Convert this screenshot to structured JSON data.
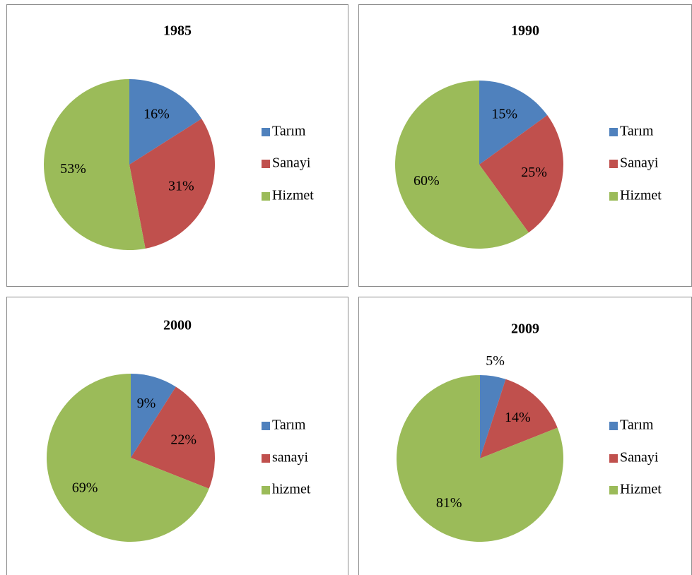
{
  "chart_data": [
    {
      "type": "pie",
      "title": "1985",
      "categories": [
        "Tarım",
        "Sanayi",
        "Hizmet"
      ],
      "values": [
        16,
        31,
        53
      ],
      "value_labels": [
        "16%",
        "31%",
        "53%"
      ],
      "colors": [
        "#4f81bd",
        "#c0504d",
        "#9bbb59"
      ]
    },
    {
      "type": "pie",
      "title": "1990",
      "categories": [
        "Tarım",
        "Sanayi",
        "Hizmet"
      ],
      "values": [
        15,
        25,
        60
      ],
      "value_labels": [
        "15%",
        "25%",
        "60%"
      ],
      "colors": [
        "#4f81bd",
        "#c0504d",
        "#9bbb59"
      ]
    },
    {
      "type": "pie",
      "title": "2000",
      "categories": [
        "Tarım",
        "sanayi",
        "hizmet"
      ],
      "values": [
        9,
        22,
        69
      ],
      "value_labels": [
        "9%",
        "22%",
        "69%"
      ],
      "colors": [
        "#4f81bd",
        "#c0504d",
        "#9bbb59"
      ]
    },
    {
      "type": "pie",
      "title": "2009",
      "categories": [
        "Tarım",
        "Sanayi",
        "Hizmet"
      ],
      "values": [
        5,
        14,
        81
      ],
      "value_labels": [
        "5%",
        "14%",
        "81%"
      ],
      "colors": [
        "#4f81bd",
        "#c0504d",
        "#9bbb59"
      ]
    }
  ]
}
